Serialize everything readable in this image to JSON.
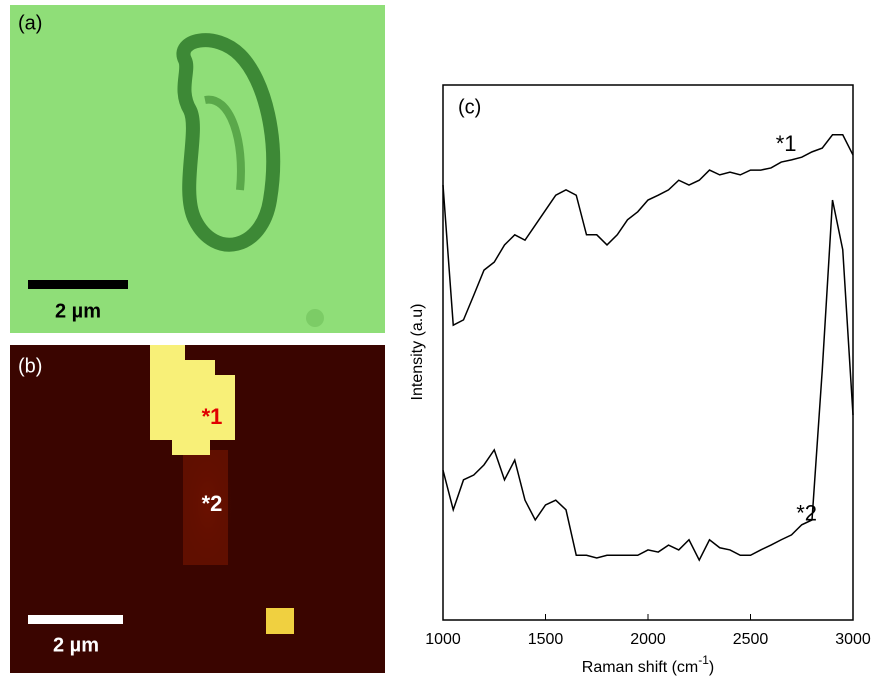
{
  "panels": {
    "a": {
      "label": "(a)",
      "scale": "2 µm"
    },
    "b": {
      "label": "(b)",
      "scale": "2 µm",
      "spot1": "*1",
      "spot2": "*2"
    }
  },
  "chart_data": {
    "type": "line",
    "panel_label": "(c)",
    "xlabel": "Raman shift (cm",
    "xlabel_sup": "-1",
    "xlabel_end": ")",
    "ylabel": "Intensity (a.u)",
    "x": [
      1000,
      1050,
      1100,
      1150,
      1200,
      1250,
      1300,
      1350,
      1400,
      1450,
      1500,
      1550,
      1600,
      1650,
      1700,
      1750,
      1800,
      1850,
      1900,
      1950,
      2000,
      2050,
      2100,
      2150,
      2200,
      2250,
      2300,
      2350,
      2400,
      2450,
      2500,
      2550,
      2600,
      2650,
      2700,
      2750,
      2800,
      2850,
      2900,
      2950,
      3000
    ],
    "xlim": [
      1000,
      3000
    ],
    "xticks": [
      1000,
      1500,
      2000,
      2500,
      3000
    ],
    "ylim": [
      0,
      100
    ],
    "series": [
      {
        "name": "*1",
        "color": "#000000",
        "values": [
          81.3,
          55.1,
          56.1,
          60.7,
          65.4,
          66.9,
          70.1,
          72.0,
          71.0,
          73.8,
          76.6,
          79.4,
          80.4,
          79.4,
          72.0,
          72.0,
          70.1,
          72.0,
          74.8,
          76.3,
          78.5,
          79.4,
          80.4,
          82.2,
          81.3,
          82.2,
          84.1,
          83.2,
          83.7,
          83.2,
          84.1,
          84.1,
          84.5,
          85.6,
          86.0,
          86.5,
          87.5,
          88.2,
          90.7,
          90.7,
          86.9
        ]
      },
      {
        "name": "*2",
        "color": "#000000",
        "values": [
          28.0,
          20.6,
          26.2,
          27.1,
          29.0,
          31.8,
          26.2,
          29.9,
          22.4,
          18.7,
          21.5,
          22.4,
          20.6,
          12.1,
          12.1,
          11.6,
          12.1,
          12.1,
          12.1,
          12.1,
          13.1,
          12.7,
          14.0,
          13.1,
          15.0,
          11.2,
          15.0,
          13.5,
          13.1,
          12.1,
          12.1,
          13.1,
          14.0,
          15.0,
          15.9,
          17.8,
          18.7,
          46.7,
          78.5,
          69.2,
          38.3
        ]
      }
    ]
  }
}
